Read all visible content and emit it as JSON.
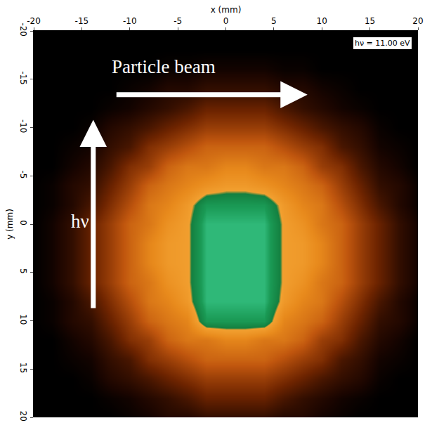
{
  "chart_data": {
    "type": "heatmap",
    "xlabel": "x (mm)",
    "ylabel": "y (mm)",
    "annotations": [
      "Particle beam",
      "hν",
      "hν = 11.00 eV"
    ],
    "grid": false,
    "xlim": [
      -20,
      20
    ],
    "ylim": [
      20,
      -20
    ],
    "xticks": [
      -20,
      -15,
      -10,
      -5,
      0,
      5,
      10,
      15,
      20
    ],
    "yticks": [
      -20,
      -15,
      -10,
      -5,
      0,
      5,
      10,
      15,
      20
    ],
    "x": [
      -20,
      -18,
      -16,
      -14,
      -12,
      -10,
      -8,
      -6,
      -4,
      -2,
      0,
      2,
      4,
      6,
      8,
      10,
      12,
      14,
      16,
      18,
      20
    ],
    "y": [
      -20,
      -18,
      -16,
      -14,
      -12,
      -10,
      -8,
      -6,
      -4,
      -2,
      0,
      2,
      4,
      6,
      8,
      10,
      12,
      14,
      16,
      18,
      20
    ],
    "z": [
      [
        0.02,
        0.02,
        0.02,
        0.02,
        0.02,
        0.02,
        0.02,
        0.02,
        0.02,
        0.02,
        0.02,
        0.02,
        0.02,
        0.02,
        0.02,
        0.02,
        0.02,
        0.02,
        0.02,
        0.02,
        0.02
      ],
      [
        0.02,
        0.02,
        0.02,
        0.02,
        0.02,
        0.02,
        0.02,
        0.02,
        0.02,
        0.02,
        0.02,
        0.02,
        0.02,
        0.02,
        0.02,
        0.02,
        0.02,
        0.02,
        0.02,
        0.02,
        0.02
      ],
      [
        0.02,
        0.02,
        0.02,
        0.02,
        0.02,
        0.02,
        0.02,
        0.04,
        0.04,
        0.06,
        0.06,
        0.06,
        0.06,
        0.04,
        0.04,
        0.02,
        0.02,
        0.02,
        0.02,
        0.02,
        0.02
      ],
      [
        0.02,
        0.02,
        0.02,
        0.02,
        0.02,
        0.04,
        0.06,
        0.1,
        0.1,
        0.14,
        0.14,
        0.14,
        0.14,
        0.1,
        0.1,
        0.06,
        0.04,
        0.02,
        0.02,
        0.02,
        0.02
      ],
      [
        0.02,
        0.02,
        0.02,
        0.02,
        0.04,
        0.06,
        0.1,
        0.14,
        0.2,
        0.28,
        0.28,
        0.28,
        0.28,
        0.2,
        0.14,
        0.1,
        0.06,
        0.04,
        0.02,
        0.02,
        0.02
      ],
      [
        0.02,
        0.02,
        0.02,
        0.04,
        0.1,
        0.14,
        0.2,
        0.28,
        0.35,
        0.42,
        0.42,
        0.42,
        0.42,
        0.35,
        0.28,
        0.2,
        0.14,
        0.1,
        0.04,
        0.02,
        0.02
      ],
      [
        0.02,
        0.02,
        0.04,
        0.06,
        0.14,
        0.2,
        0.35,
        0.42,
        0.5,
        0.58,
        0.58,
        0.58,
        0.58,
        0.5,
        0.42,
        0.35,
        0.2,
        0.14,
        0.06,
        0.04,
        0.02
      ],
      [
        0.02,
        0.02,
        0.06,
        0.1,
        0.2,
        0.35,
        0.42,
        0.58,
        0.65,
        0.65,
        0.7,
        0.7,
        0.65,
        0.65,
        0.58,
        0.42,
        0.35,
        0.2,
        0.1,
        0.06,
        0.02
      ],
      [
        0.02,
        0.04,
        0.1,
        0.14,
        0.28,
        0.42,
        0.58,
        0.65,
        0.7,
        0.75,
        0.78,
        0.78,
        0.75,
        0.7,
        0.65,
        0.58,
        0.42,
        0.28,
        0.14,
        0.1,
        0.04
      ],
      [
        0.02,
        0.04,
        0.1,
        0.2,
        0.35,
        0.5,
        0.65,
        0.7,
        0.78,
        0.9,
        0.9,
        0.9,
        0.9,
        0.78,
        0.7,
        0.65,
        0.5,
        0.35,
        0.2,
        0.1,
        0.04
      ],
      [
        0.02,
        0.06,
        0.14,
        0.28,
        0.42,
        0.58,
        0.65,
        0.75,
        0.8,
        0.95,
        0.95,
        0.95,
        0.95,
        0.8,
        0.75,
        0.65,
        0.58,
        0.42,
        0.28,
        0.14,
        0.06
      ],
      [
        0.02,
        0.06,
        0.14,
        0.28,
        0.42,
        0.58,
        0.7,
        0.78,
        0.8,
        0.95,
        0.95,
        0.95,
        0.95,
        0.8,
        0.78,
        0.7,
        0.58,
        0.42,
        0.28,
        0.14,
        0.06
      ],
      [
        0.02,
        0.06,
        0.14,
        0.28,
        0.42,
        0.58,
        0.7,
        0.78,
        0.8,
        0.95,
        0.95,
        0.95,
        0.95,
        0.8,
        0.78,
        0.7,
        0.58,
        0.42,
        0.28,
        0.14,
        0.06
      ],
      [
        0.02,
        0.06,
        0.14,
        0.28,
        0.42,
        0.58,
        0.65,
        0.75,
        0.8,
        0.95,
        0.95,
        0.95,
        0.95,
        0.8,
        0.75,
        0.65,
        0.58,
        0.42,
        0.28,
        0.14,
        0.06
      ],
      [
        0.02,
        0.04,
        0.1,
        0.2,
        0.35,
        0.5,
        0.65,
        0.7,
        0.78,
        0.95,
        0.95,
        0.95,
        0.95,
        0.78,
        0.7,
        0.65,
        0.5,
        0.35,
        0.2,
        0.1,
        0.04
      ],
      [
        0.02,
        0.04,
        0.1,
        0.14,
        0.28,
        0.42,
        0.58,
        0.65,
        0.7,
        0.9,
        0.9,
        0.9,
        0.9,
        0.7,
        0.65,
        0.58,
        0.42,
        0.28,
        0.14,
        0.1,
        0.04
      ],
      [
        0.02,
        0.02,
        0.06,
        0.1,
        0.2,
        0.35,
        0.42,
        0.58,
        0.65,
        0.65,
        0.7,
        0.7,
        0.65,
        0.65,
        0.58,
        0.42,
        0.35,
        0.2,
        0.1,
        0.06,
        0.02
      ],
      [
        0.02,
        0.02,
        0.04,
        0.06,
        0.14,
        0.2,
        0.35,
        0.42,
        0.5,
        0.58,
        0.58,
        0.58,
        0.58,
        0.5,
        0.42,
        0.35,
        0.2,
        0.14,
        0.06,
        0.04,
        0.02
      ],
      [
        0.02,
        0.02,
        0.02,
        0.04,
        0.1,
        0.14,
        0.2,
        0.28,
        0.35,
        0.42,
        0.42,
        0.42,
        0.42,
        0.35,
        0.28,
        0.2,
        0.14,
        0.1,
        0.04,
        0.02,
        0.02
      ],
      [
        0.02,
        0.02,
        0.02,
        0.02,
        0.04,
        0.06,
        0.1,
        0.14,
        0.2,
        0.28,
        0.28,
        0.28,
        0.28,
        0.2,
        0.14,
        0.1,
        0.06,
        0.04,
        0.02,
        0.02,
        0.02
      ],
      [
        0.02,
        0.02,
        0.02,
        0.02,
        0.02,
        0.04,
        0.06,
        0.1,
        0.1,
        0.14,
        0.14,
        0.14,
        0.14,
        0.1,
        0.1,
        0.06,
        0.04,
        0.02,
        0.02,
        0.02,
        0.02
      ]
    ]
  }
}
